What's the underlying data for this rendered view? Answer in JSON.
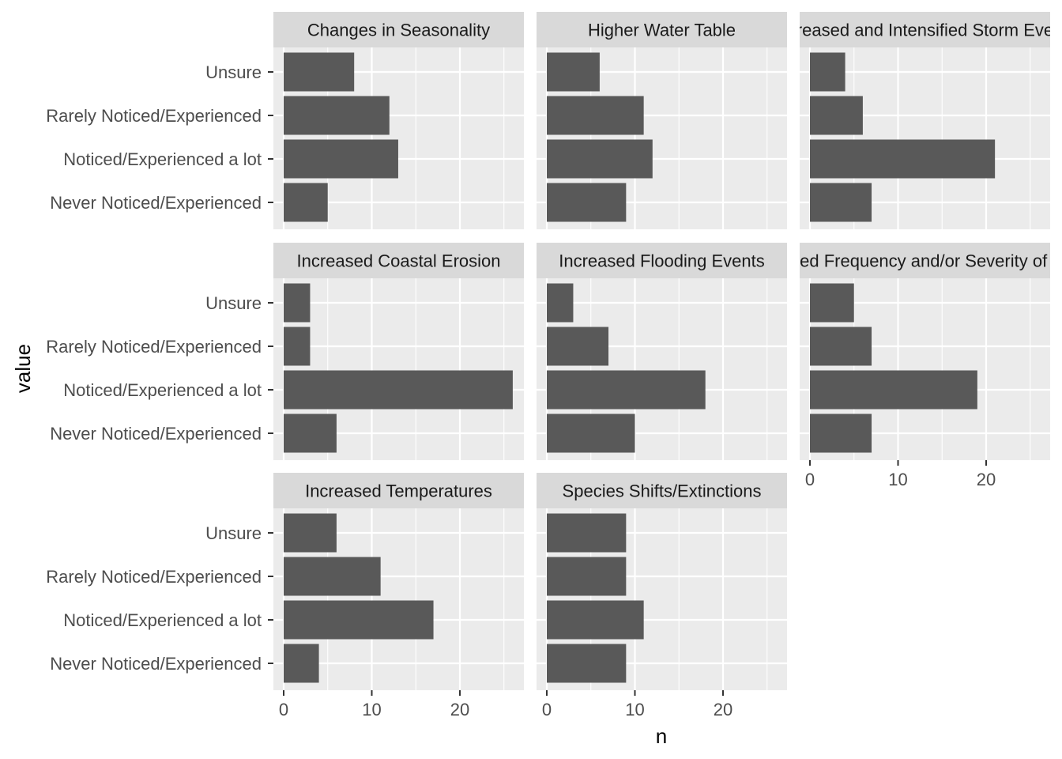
{
  "chart_data": {
    "type": "bar",
    "orientation": "horizontal",
    "facet": true,
    "xlabel": "n",
    "ylabel": "value",
    "xlim": [
      0,
      27
    ],
    "x_ticks": [
      0,
      10,
      20
    ],
    "categories": [
      "Never Noticed/Experienced",
      "Noticed/Experienced a lot",
      "Rarely Noticed/Experienced",
      "Unsure"
    ],
    "panels": [
      {
        "title": "Changes in Seasonality",
        "values": [
          5,
          13,
          12,
          8
        ]
      },
      {
        "title": "Higher Water Table",
        "values": [
          9,
          12,
          11,
          6
        ]
      },
      {
        "title": "Increased and Intensified Storm Events",
        "values": [
          7,
          21,
          6,
          4
        ]
      },
      {
        "title": "Increased Coastal Erosion",
        "values": [
          6,
          26,
          3,
          3
        ]
      },
      {
        "title": "Increased Flooding Events",
        "values": [
          10,
          18,
          7,
          3
        ]
      },
      {
        "title": "Increased Frequency and/or Severity of Storms",
        "values": [
          7,
          19,
          7,
          5
        ]
      },
      {
        "title": "Increased Temperatures",
        "values": [
          4,
          17,
          11,
          6
        ]
      },
      {
        "title": "Species Shifts/Extinctions",
        "values": [
          9,
          11,
          9,
          9
        ]
      }
    ],
    "bar_color": "#595959",
    "panel_background": "#ebebeb",
    "strip_background": "#d9d9d9",
    "grid": true,
    "legend": "none"
  }
}
